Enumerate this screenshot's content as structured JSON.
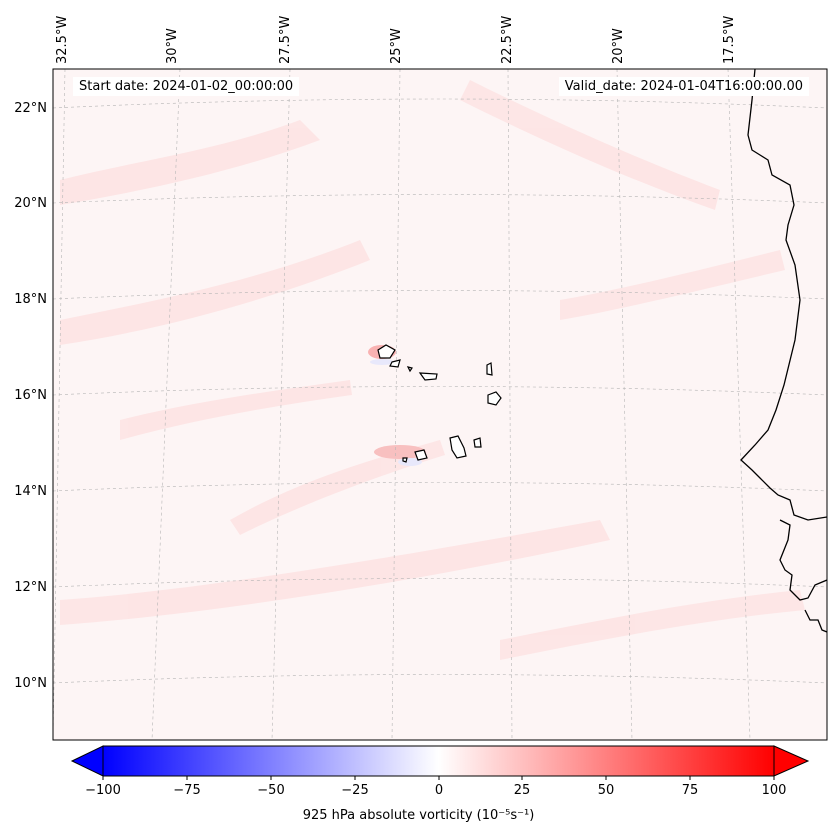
{
  "header": {
    "start_date": "Start date: 2024-01-02_00:00:00",
    "valid_date": "Valid_date: 2024-01-04T16:00:00.00"
  },
  "axes": {
    "longitude_labels": [
      "32.5°W",
      "30°W",
      "27.5°W",
      "25°W",
      "22.5°W",
      "20°W",
      "17.5°W"
    ],
    "latitude_labels": [
      "22°N",
      "20°N",
      "18°N",
      "16°N",
      "14°N",
      "12°N",
      "10°N"
    ]
  },
  "colorbar": {
    "label": "925 hPa absolute vorticity (10⁻⁵s⁻¹)",
    "ticks": [
      "−100",
      "−75",
      "−50",
      "−25",
      "0",
      "25",
      "50",
      "75",
      "100"
    ],
    "range": [
      -100,
      100
    ],
    "colormap": "bwr",
    "extend": "both",
    "colors": {
      "negative": "#0000ff",
      "neutral": "#ffffff",
      "positive": "#ff0000"
    }
  },
  "map": {
    "projection": "lambert-conformal",
    "gridlines": true,
    "background_field": "#fdf5f5"
  }
}
